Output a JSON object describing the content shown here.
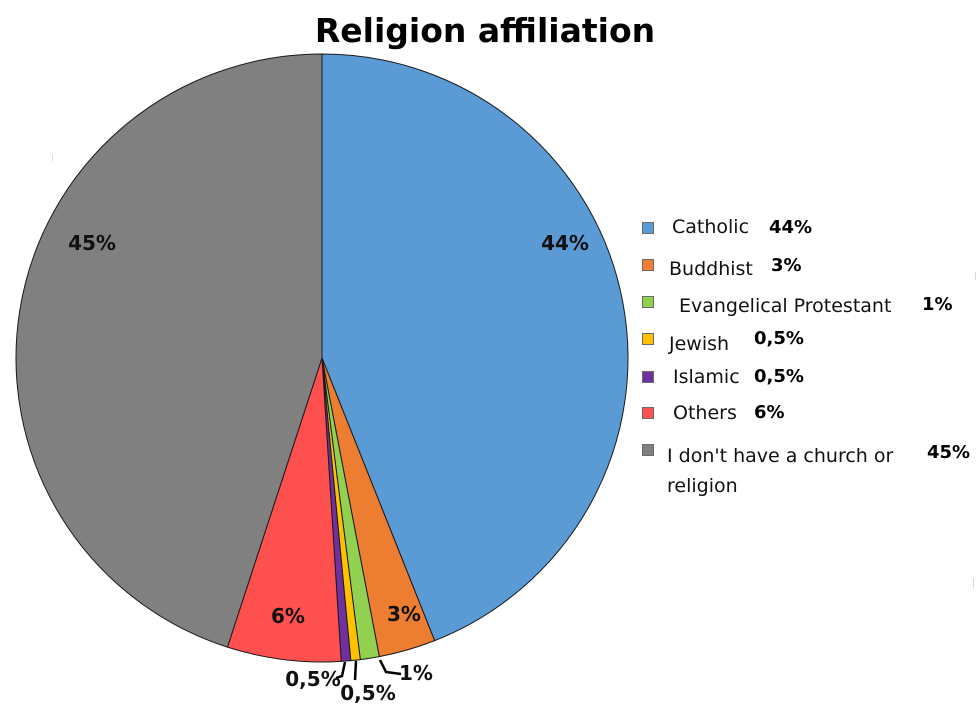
{
  "chart_data": {
    "type": "pie",
    "title": "Religion affiliation",
    "slices": [
      {
        "label": "Catholic",
        "value": 44,
        "value_label": "44%",
        "color": "#5b9bd5"
      },
      {
        "label": "Buddhist",
        "value": 3,
        "value_label": "3%",
        "color": "#ed7d31"
      },
      {
        "label": "Evangelical Protestant",
        "value": 1,
        "value_label": "1%",
        "color": "#92d050"
      },
      {
        "label": "Jewish",
        "value": 0.5,
        "value_label": "0,5%",
        "color": "#ffc000"
      },
      {
        "label": "Islamic",
        "value": 0.5,
        "value_label": "0,5%",
        "color": "#7030a0"
      },
      {
        "label": "Others",
        "value": 6,
        "value_label": "6%",
        "color": "#ff5050"
      },
      {
        "label": "I don't have a church or religion",
        "value": 45,
        "value_label": "45%",
        "color": "#808080"
      }
    ],
    "start_angle": "12 o'clock",
    "direction": "clockwise",
    "legend_position": "right",
    "data_labels": "percent, with leader lines for small slices"
  }
}
